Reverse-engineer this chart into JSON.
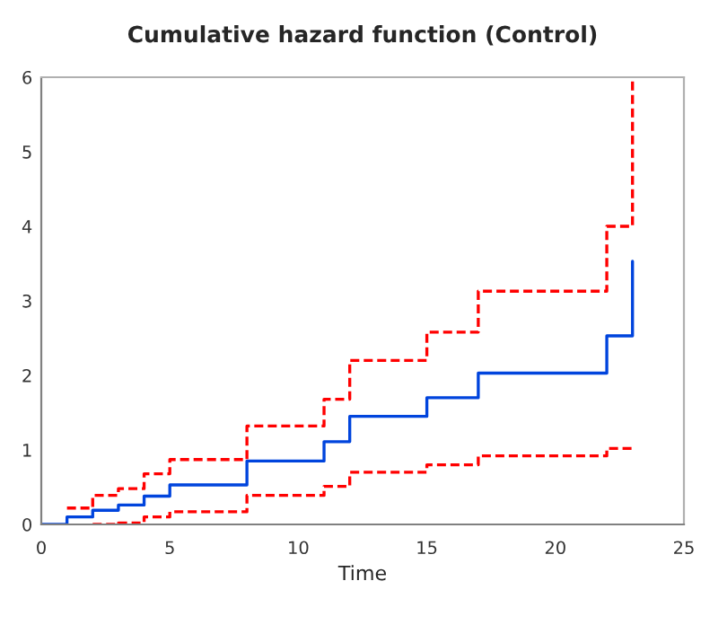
{
  "chart_data": {
    "type": "step",
    "title": "Cumulative hazard function (Control)",
    "xlabel": "Time",
    "xlim": [
      0,
      25
    ],
    "xticks": [
      0,
      5,
      10,
      15,
      20,
      25
    ],
    "ylim": [
      0,
      6
    ],
    "yticks": [
      0,
      1,
      2,
      3,
      4,
      5,
      6
    ],
    "grid": false,
    "legend": false,
    "series": [
      {
        "color": "#0044dd",
        "line_style": "solid",
        "x": [
          0,
          1,
          2,
          3,
          4,
          5,
          8,
          11,
          12,
          15,
          17,
          22,
          23
        ],
        "values": [
          0,
          0.1,
          0.19,
          0.26,
          0.38,
          0.53,
          0.85,
          1.11,
          1.45,
          1.7,
          2.03,
          2.53,
          3.53
        ]
      },
      {
        "color": "#ff0000",
        "line_style": "dashed",
        "x": [
          1,
          2,
          3,
          4,
          5,
          8,
          11,
          12,
          15,
          17,
          22,
          23
        ],
        "values": [
          0.22,
          0.39,
          0.48,
          0.68,
          0.87,
          1.32,
          1.68,
          2.2,
          2.58,
          3.13,
          4.0,
          6.0
        ]
      },
      {
        "color": "#ff0000",
        "line_style": "dashed",
        "x": [
          2,
          3,
          4,
          5,
          8,
          11,
          12,
          15,
          17,
          22,
          23
        ],
        "values": [
          0,
          0.02,
          0.1,
          0.17,
          0.39,
          0.51,
          0.7,
          0.8,
          0.92,
          1.02,
          1.05
        ]
      }
    ]
  }
}
